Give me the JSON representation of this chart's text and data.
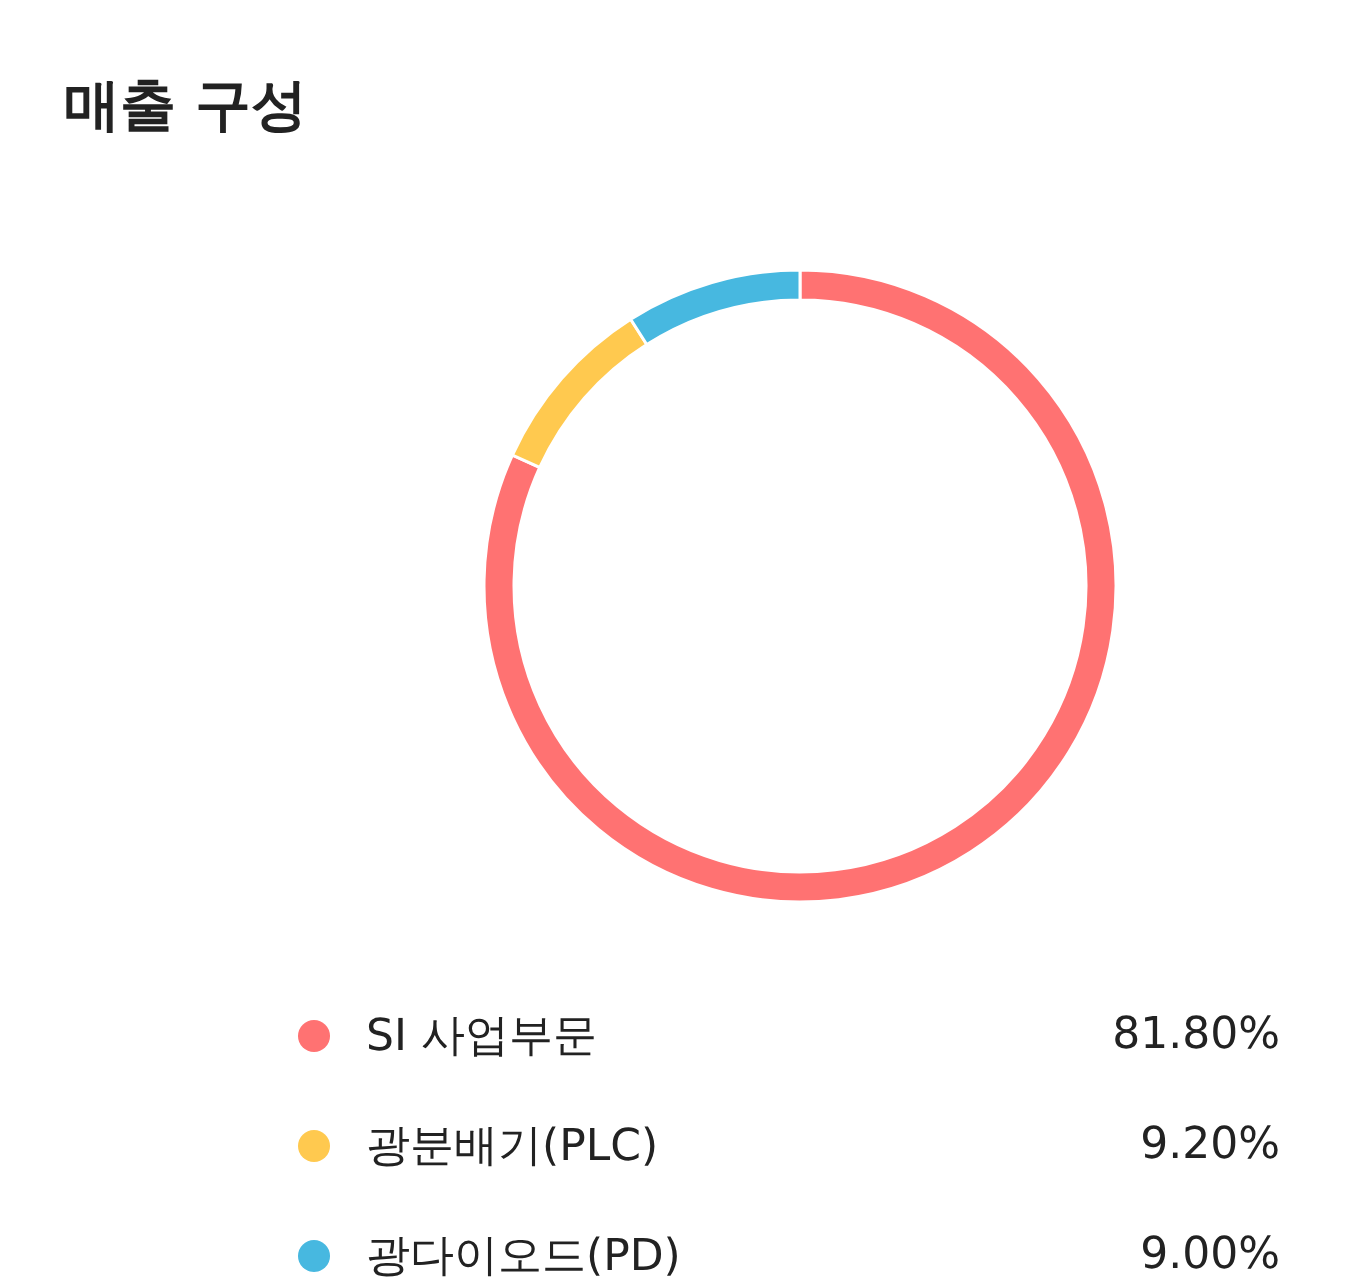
{
  "chart_data": {
    "type": "donut",
    "title": "매출 구성",
    "categories": [
      "SI 사업부문",
      "광분배기(PLC)",
      "광다이오드(PD)"
    ],
    "values": [
      81.8,
      9.2,
      9.0
    ],
    "value_labels": [
      "81.80%",
      "9.20%",
      "9.00%"
    ],
    "colors": [
      "#ff7272",
      "#ffc94f",
      "#47b8e0"
    ],
    "legend": "bottom"
  }
}
